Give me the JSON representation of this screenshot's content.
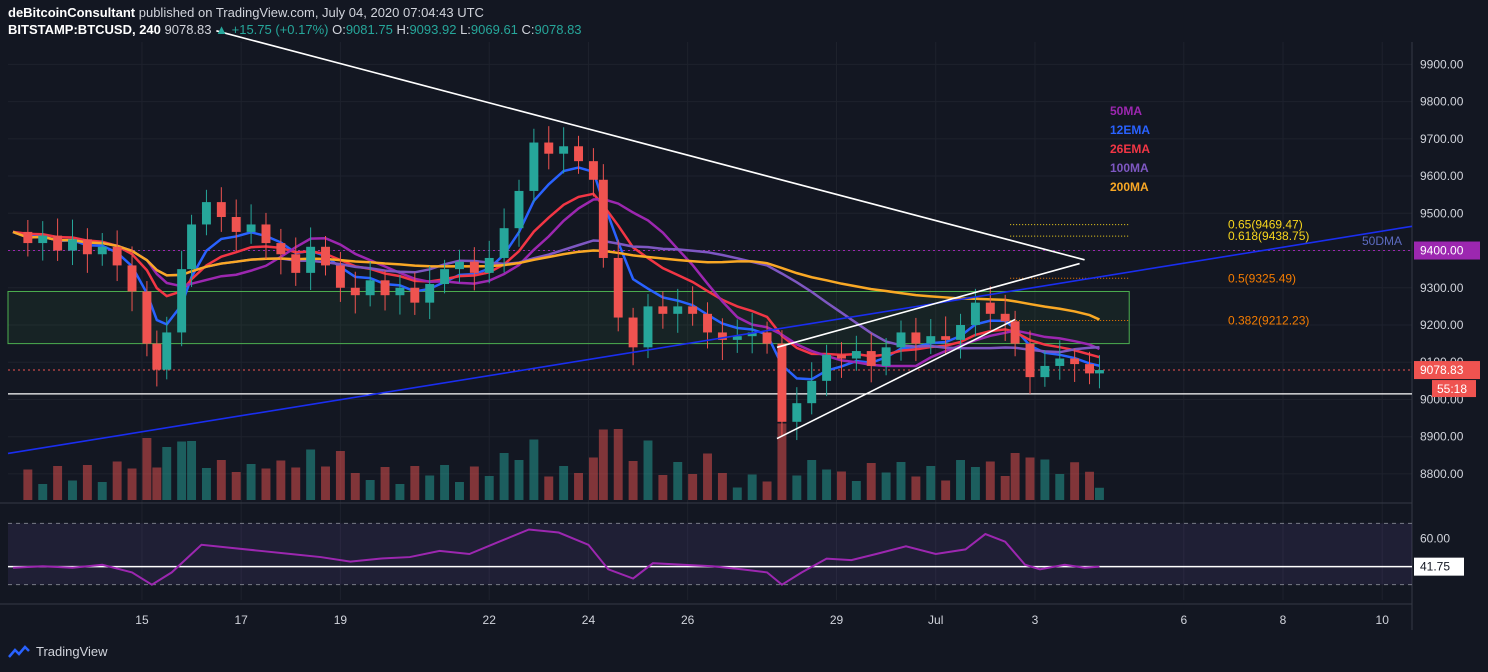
{
  "header": {
    "publisher": "deBitcoinConsultant",
    "published_text": "published on TradingView.com, July 04, 2020 07:04:43 UTC",
    "symbol": "BITSTAMP:BTCUSD, 240",
    "last": "9078.83",
    "change": "▲ +15.75 (+0.17%)",
    "o_label": "O:",
    "o": "9081.75",
    "h_label": "H:",
    "h": "9093.92",
    "l_label": "L:",
    "l": "9069.61",
    "c_label": "C:",
    "c": "9078.83"
  },
  "footer": {
    "brand": "TradingView"
  },
  "colors": {
    "bg": "#131722",
    "up": "#26a69a",
    "down": "#ef5350",
    "ma50": "#9c27b0",
    "ema12": "#2962ff",
    "ema26": "#f23645",
    "ma100": "#7e57c2",
    "ma200": "#f9a825",
    "fib": "#f57c00",
    "rsi": "#9c27b0"
  },
  "chart_data": {
    "type": "candlestick",
    "symbol": "BITSTAMP:BTCUSD",
    "interval": "240",
    "ylim": [
      8730,
      9960
    ],
    "y_ticks": [
      "9900.00",
      "9800.00",
      "9700.00",
      "9600.00",
      "9500.00",
      "9400.00",
      "9300.00",
      "9200.00",
      "9100.00",
      "9000.00",
      "8900.00",
      "8800.00"
    ],
    "x_ticks": [
      "15",
      "17",
      "19",
      "22",
      "24",
      "26",
      "29",
      "Jul",
      "3",
      "6",
      "8",
      "10"
    ],
    "x_tick_days": [
      15,
      17,
      19,
      22,
      24,
      26,
      29,
      31,
      33,
      36,
      38,
      40
    ],
    "x_range_days": [
      12.3,
      40.6
    ],
    "legend": [
      "50MA",
      "12EMA",
      "26EMA",
      "100MA",
      "200MA"
    ],
    "legend_colors": [
      "#9c27b0",
      "#2962ff",
      "#f23645",
      "#7e57c2",
      "#f9a825"
    ],
    "fib_levels": [
      {
        "label": "0.65(9469.47)",
        "value": 9469.47,
        "color": "#f9d71c"
      },
      {
        "label": "0.618(9438.75)",
        "value": 9438.75,
        "color": "#f9d71c"
      },
      {
        "label": "0.5(9325.49)",
        "value": 9325.49,
        "color": "#f57c00"
      },
      {
        "label": "0.382(9212.23)",
        "value": 9212.23,
        "color": "#f57c00"
      }
    ],
    "annotations": {
      "daily_ma_label": "50DMA",
      "price_badge": "9400.00",
      "last_price": "9078.83",
      "countdown": "55:18"
    },
    "zone": {
      "top": 9290,
      "bottom": 9150
    },
    "support_line": 9015,
    "lines": [
      {
        "name": "downtrend",
        "points": [
          [
            16.5,
            9990
          ],
          [
            34.0,
            9375
          ]
        ]
      },
      {
        "name": "daily-50ma",
        "points": [
          [
            12.3,
            8855
          ],
          [
            40.6,
            9465
          ]
        ]
      },
      {
        "name": "wedge-upper",
        "points": [
          [
            27.8,
            9140
          ],
          [
            33.9,
            9365
          ]
        ]
      },
      {
        "name": "wedge-lower",
        "points": [
          [
            27.8,
            8895
          ],
          [
            32.6,
            9215
          ]
        ]
      }
    ],
    "close_series": [
      [
        12.4,
        9450
      ],
      [
        12.7,
        9420
      ],
      [
        13.0,
        9440
      ],
      [
        13.3,
        9400
      ],
      [
        13.6,
        9430
      ],
      [
        13.9,
        9390
      ],
      [
        14.2,
        9410
      ],
      [
        14.5,
        9360
      ],
      [
        14.8,
        9290
      ],
      [
        15.1,
        9150
      ],
      [
        15.3,
        9080
      ],
      [
        15.5,
        9180
      ],
      [
        15.8,
        9350
      ],
      [
        16.0,
        9470
      ],
      [
        16.3,
        9530
      ],
      [
        16.6,
        9490
      ],
      [
        16.9,
        9450
      ],
      [
        17.2,
        9470
      ],
      [
        17.5,
        9420
      ],
      [
        17.8,
        9390
      ],
      [
        18.1,
        9340
      ],
      [
        18.4,
        9410
      ],
      [
        18.7,
        9360
      ],
      [
        19.0,
        9300
      ],
      [
        19.3,
        9280
      ],
      [
        19.6,
        9320
      ],
      [
        19.9,
        9280
      ],
      [
        20.2,
        9300
      ],
      [
        20.5,
        9260
      ],
      [
        20.8,
        9310
      ],
      [
        21.1,
        9350
      ],
      [
        21.4,
        9370
      ],
      [
        21.7,
        9340
      ],
      [
        22.0,
        9380
      ],
      [
        22.3,
        9460
      ],
      [
        22.6,
        9560
      ],
      [
        22.9,
        9690
      ],
      [
        23.2,
        9660
      ],
      [
        23.5,
        9680
      ],
      [
        23.8,
        9640
      ],
      [
        24.1,
        9590
      ],
      [
        24.3,
        9380
      ],
      [
        24.6,
        9220
      ],
      [
        24.9,
        9140
      ],
      [
        25.2,
        9250
      ],
      [
        25.5,
        9230
      ],
      [
        25.8,
        9250
      ],
      [
        26.1,
        9230
      ],
      [
        26.4,
        9180
      ],
      [
        26.7,
        9160
      ],
      [
        27.0,
        9170
      ],
      [
        27.3,
        9180
      ],
      [
        27.6,
        9150
      ],
      [
        27.9,
        8940
      ],
      [
        28.2,
        8990
      ],
      [
        28.5,
        9050
      ],
      [
        28.8,
        9120
      ],
      [
        29.1,
        9110
      ],
      [
        29.4,
        9130
      ],
      [
        29.7,
        9090
      ],
      [
        30.0,
        9140
      ],
      [
        30.3,
        9180
      ],
      [
        30.6,
        9150
      ],
      [
        30.9,
        9170
      ],
      [
        31.2,
        9160
      ],
      [
        31.5,
        9200
      ],
      [
        31.8,
        9260
      ],
      [
        32.1,
        9230
      ],
      [
        32.4,
        9210
      ],
      [
        32.6,
        9150
      ],
      [
        32.9,
        9060
      ],
      [
        33.2,
        9090
      ],
      [
        33.5,
        9110
      ],
      [
        33.8,
        9095
      ],
      [
        34.1,
        9070
      ],
      [
        34.3,
        9079
      ]
    ],
    "rsi": {
      "value_label": "41.75",
      "value": 41.75,
      "ylim": [
        20,
        80
      ],
      "y_ticks": [
        "60.00"
      ],
      "bands": [
        70,
        30
      ],
      "points": [
        [
          12.4,
          41
        ],
        [
          13.0,
          42
        ],
        [
          13.6,
          41
        ],
        [
          14.2,
          43
        ],
        [
          14.8,
          38
        ],
        [
          15.2,
          30
        ],
        [
          15.6,
          38
        ],
        [
          16.2,
          56
        ],
        [
          16.8,
          54
        ],
        [
          17.4,
          52
        ],
        [
          18.0,
          50
        ],
        [
          18.6,
          48
        ],
        [
          19.2,
          45
        ],
        [
          19.8,
          47
        ],
        [
          20.4,
          48
        ],
        [
          21.0,
          52
        ],
        [
          21.6,
          50
        ],
        [
          22.2,
          58
        ],
        [
          22.8,
          66
        ],
        [
          23.4,
          64
        ],
        [
          24.0,
          56
        ],
        [
          24.4,
          40
        ],
        [
          24.9,
          34
        ],
        [
          25.3,
          44
        ],
        [
          25.9,
          43
        ],
        [
          26.5,
          42
        ],
        [
          27.1,
          40
        ],
        [
          27.6,
          38
        ],
        [
          27.9,
          30
        ],
        [
          28.3,
          38
        ],
        [
          28.8,
          47
        ],
        [
          29.3,
          46
        ],
        [
          29.8,
          50
        ],
        [
          30.4,
          55
        ],
        [
          31.0,
          50
        ],
        [
          31.6,
          53
        ],
        [
          32.0,
          63
        ],
        [
          32.4,
          58
        ],
        [
          32.8,
          43
        ],
        [
          33.1,
          40
        ],
        [
          33.6,
          43
        ],
        [
          34.0,
          41
        ],
        [
          34.3,
          41.75
        ]
      ]
    }
  }
}
